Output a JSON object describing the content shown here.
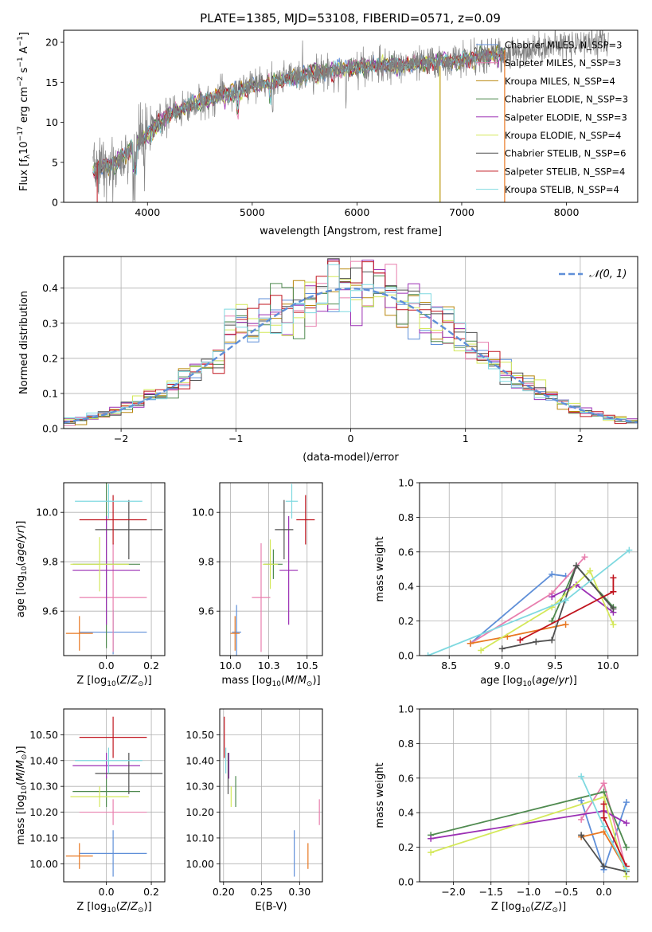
{
  "chart_data": [
    {
      "type": "line",
      "title": "PLATE=1385, MJD=53108, FIBERID=0571, z=0.09",
      "xlabel": "wavelength [Angstrom, rest frame]",
      "ylabel": "Flux [f_λ 10^-17 erg cm^-2 s^-1 A^-1]",
      "xlim": [
        3200,
        8680
      ],
      "ylim": [
        0,
        21.5
      ],
      "xticks": [
        4000,
        5000,
        6000,
        7000,
        8000
      ],
      "yticks": [
        0,
        5,
        10,
        15,
        20
      ],
      "legend_position": "top-right",
      "series": [
        {
          "name": "Chabrier MILES, N_SSP=3",
          "color": "#5f8fd8"
        },
        {
          "name": "Salpeter MILES, N_SSP=3",
          "color": "#e87fae"
        },
        {
          "name": "Kroupa MILES, N_SSP=4",
          "color": "#b8860b"
        },
        {
          "name": "Chabrier ELODIE, N_SSP=3",
          "color": "#4f8a4f"
        },
        {
          "name": "Salpeter ELODIE, N_SSP=3",
          "color": "#9b2fb4"
        },
        {
          "name": "Kroupa ELODIE, N_SSP=4",
          "color": "#d4e85a"
        },
        {
          "name": "Chabrier STELIB, N_SSP=6",
          "color": "#505050"
        },
        {
          "name": "Salpeter STELIB, N_SSP=4",
          "color": "#c0141e"
        },
        {
          "name": "Kroupa STELIB, N_SSP=4",
          "color": "#7fd9e0"
        }
      ],
      "data_color": "#808080",
      "approx_continuum": {
        "x": [
          3500,
          3700,
          3900,
          4000,
          4200,
          4500,
          5000,
          5500,
          6000,
          6500,
          7000,
          7400,
          7800,
          8200
        ],
        "y": [
          4,
          5,
          7.5,
          8.5,
          11,
          12.5,
          14.5,
          16,
          16.8,
          17.2,
          17.8,
          18.5,
          19.5,
          20
        ]
      }
    },
    {
      "type": "histogram",
      "xlabel": "(data-model)/error",
      "ylabel": "Normed distribution",
      "xlim": [
        -2.5,
        2.5
      ],
      "ylim": [
        0,
        0.49
      ],
      "xticks": [
        -2,
        -1,
        0,
        1,
        2
      ],
      "yticks": [
        0.0,
        0.1,
        0.2,
        0.3,
        0.4
      ],
      "legend": [
        "N(0,1)"
      ],
      "reference_curve": "gaussian N(0,1)",
      "bin_width": 0.1,
      "grid": true
    },
    {
      "type": "scatter",
      "panel": "age vs Z",
      "xlabel": "Z [log10(Z/Z_sun)]",
      "ylabel": "age [log10(age/yr)]",
      "xlim": [
        -0.19,
        0.26
      ],
      "ylim": [
        9.42,
        10.12
      ],
      "xticks": [
        0.0,
        0.2
      ],
      "yticks": [
        9.6,
        9.8,
        10.0
      ],
      "points": [
        {
          "x": 0.03,
          "xerr": 0.15,
          "y": 9.515,
          "yerr": 0.09,
          "color": "#5f8fd8"
        },
        {
          "x": 0.03,
          "xerr": 0.15,
          "y": 9.655,
          "yerr": 0.22,
          "color": "#e87fae"
        },
        {
          "x": -0.12,
          "xerr": 0.06,
          "y": 9.51,
          "yerr": 0.07,
          "color": "#e87822"
        },
        {
          "x": 0.0,
          "xerr": 0.15,
          "y": 9.79,
          "yerr": 0.34,
          "color": "#4f8a4f"
        },
        {
          "x": 0.0,
          "xerr": 0.15,
          "y": 9.765,
          "yerr": 0.22,
          "color": "#9b2fb4"
        },
        {
          "x": -0.03,
          "xerr": 0.13,
          "y": 9.79,
          "yerr": 0.11,
          "color": "#d4e85a"
        },
        {
          "x": 0.1,
          "xerr": 0.15,
          "y": 9.93,
          "yerr": 0.12,
          "color": "#505050"
        },
        {
          "x": 0.03,
          "xerr": 0.15,
          "y": 9.97,
          "yerr": 0.1,
          "color": "#c0141e"
        },
        {
          "x": 0.01,
          "xerr": 0.15,
          "y": 10.045,
          "yerr": 0.07,
          "color": "#7fd9e0"
        }
      ]
    },
    {
      "type": "scatter",
      "panel": "age vs mass",
      "xlabel": "mass [log10(M/M_sun)]",
      "ylabel": "",
      "xlim": [
        9.93,
        10.6
      ],
      "ylim": [
        9.42,
        10.12
      ],
      "xticks": [
        10.0,
        10.25,
        10.5
      ],
      "yticks": [
        9.6,
        9.8,
        10.0
      ],
      "points": [
        {
          "x": 10.04,
          "xerr": 0.03,
          "y": 9.515,
          "yerr": 0.11,
          "color": "#5f8fd8"
        },
        {
          "x": 10.2,
          "xerr": 0.06,
          "y": 9.655,
          "yerr": 0.22,
          "color": "#e87fae"
        },
        {
          "x": 10.03,
          "xerr": 0.03,
          "y": 9.51,
          "yerr": 0.07,
          "color": "#e87822"
        },
        {
          "x": 10.28,
          "xerr": 0.06,
          "y": 9.79,
          "yerr": 0.06,
          "color": "#4f8a4f"
        },
        {
          "x": 10.38,
          "xerr": 0.06,
          "y": 9.765,
          "yerr": 0.22,
          "color": "#9b2fb4"
        },
        {
          "x": 10.26,
          "xerr": 0.05,
          "y": 9.79,
          "yerr": 0.1,
          "color": "#d4e85a"
        },
        {
          "x": 10.35,
          "xerr": 0.06,
          "y": 9.93,
          "yerr": 0.12,
          "color": "#505050"
        },
        {
          "x": 10.49,
          "xerr": 0.06,
          "y": 9.97,
          "yerr": 0.1,
          "color": "#c0141e"
        },
        {
          "x": 10.4,
          "xerr": 0.04,
          "y": 10.045,
          "yerr": 0.07,
          "color": "#7fd9e0"
        }
      ]
    },
    {
      "type": "line",
      "panel": "mass weight vs age",
      "xlabel": "age [log10(age/yr)]",
      "ylabel": "mass weight",
      "xlim": [
        8.22,
        10.28
      ],
      "ylim": [
        0.0,
        1.0
      ],
      "xticks": [
        8.5,
        9.0,
        9.5,
        10.0
      ],
      "yticks": [
        0.0,
        0.2,
        0.4,
        0.6,
        0.8,
        1.0
      ],
      "series": [
        {
          "color": "#5f8fd8",
          "x": [
            8.7,
            9.47,
            9.6
          ],
          "y": [
            0.07,
            0.47,
            0.46
          ]
        },
        {
          "color": "#e87fae",
          "x": [
            8.7,
            9.47,
            9.78
          ],
          "y": [
            0.07,
            0.36,
            0.57
          ]
        },
        {
          "color": "#e87822",
          "x": [
            8.7,
            9.05,
            9.6
          ],
          "y": [
            0.07,
            0.11,
            0.18
          ]
        },
        {
          "color": "#4f8a4f",
          "x": [
            9.47,
            9.7,
            10.05
          ],
          "y": [
            0.2,
            0.52,
            0.28
          ]
        },
        {
          "color": "#9b2fb4",
          "x": [
            9.47,
            9.7,
            10.05
          ],
          "y": [
            0.34,
            0.41,
            0.25
          ]
        },
        {
          "color": "#d4e85a",
          "x": [
            8.8,
            9.47,
            9.83,
            10.05
          ],
          "y": [
            0.03,
            0.28,
            0.49,
            0.18
          ]
        },
        {
          "color": "#505050",
          "x": [
            9.0,
            9.32,
            9.47,
            9.7,
            10.05
          ],
          "y": [
            0.04,
            0.08,
            0.09,
            0.52,
            0.27
          ]
        },
        {
          "color": "#c0141e",
          "x": [
            9.17,
            10.05,
            10.05
          ],
          "y": [
            0.09,
            0.37,
            0.45
          ]
        },
        {
          "color": "#7fd9e0",
          "x": [
            8.3,
            9.6,
            10.2
          ],
          "y": [
            0.0,
            0.32,
            0.61
          ]
        }
      ]
    },
    {
      "type": "scatter",
      "panel": "mass vs Z",
      "xlabel": "Z [log10(Z/Z_sun)]",
      "ylabel": "mass [log10(M/M_sun)]",
      "xlim": [
        -0.19,
        0.26
      ],
      "ylim": [
        9.93,
        10.6
      ],
      "xticks": [
        0.0,
        0.2
      ],
      "yticks": [
        10.0,
        10.1,
        10.2,
        10.3,
        10.4,
        10.5
      ],
      "points": [
        {
          "x": 0.03,
          "xerr": 0.15,
          "y": 10.04,
          "yerr": 0.09,
          "color": "#5f8fd8"
        },
        {
          "x": 0.03,
          "xerr": 0.15,
          "y": 10.2,
          "yerr": 0.05,
          "color": "#e87fae"
        },
        {
          "x": -0.12,
          "xerr": 0.06,
          "y": 10.03,
          "yerr": 0.05,
          "color": "#e87822"
        },
        {
          "x": 0.0,
          "xerr": 0.15,
          "y": 10.28,
          "yerr": 0.06,
          "color": "#4f8a4f"
        },
        {
          "x": 0.0,
          "xerr": 0.15,
          "y": 10.38,
          "yerr": 0.05,
          "color": "#9b2fb4"
        },
        {
          "x": -0.03,
          "xerr": 0.13,
          "y": 10.26,
          "yerr": 0.04,
          "color": "#d4e85a"
        },
        {
          "x": 0.1,
          "xerr": 0.15,
          "y": 10.35,
          "yerr": 0.08,
          "color": "#505050"
        },
        {
          "x": 0.03,
          "xerr": 0.15,
          "y": 10.49,
          "yerr": 0.08,
          "color": "#c0141e"
        },
        {
          "x": 0.01,
          "xerr": 0.15,
          "y": 10.4,
          "yerr": 0.05,
          "color": "#7fd9e0"
        }
      ]
    },
    {
      "type": "scatter",
      "panel": "mass vs E(B-V)",
      "xlabel": "E(B-V)",
      "ylabel": "",
      "xlim": [
        0.195,
        0.33
      ],
      "ylim": [
        9.93,
        10.6
      ],
      "xticks": [
        0.2,
        0.25,
        0.3
      ],
      "yticks": [
        10.0,
        10.1,
        10.2,
        10.3,
        10.4,
        10.5
      ],
      "points": [
        {
          "x": 0.293,
          "y": 10.04,
          "yerr": 0.09,
          "color": "#5f8fd8"
        },
        {
          "x": 0.326,
          "y": 10.2,
          "yerr": 0.05,
          "color": "#e87fae"
        },
        {
          "x": 0.311,
          "y": 10.03,
          "yerr": 0.05,
          "color": "#e87822"
        },
        {
          "x": 0.216,
          "y": 10.28,
          "yerr": 0.06,
          "color": "#4f8a4f"
        },
        {
          "x": 0.207,
          "y": 10.38,
          "yerr": 0.05,
          "color": "#9b2fb4"
        },
        {
          "x": 0.21,
          "y": 10.26,
          "yerr": 0.04,
          "color": "#d4e85a"
        },
        {
          "x": 0.206,
          "y": 10.35,
          "yerr": 0.08,
          "color": "#505050"
        },
        {
          "x": 0.201,
          "y": 10.49,
          "yerr": 0.08,
          "color": "#c0141e"
        },
        {
          "x": 0.203,
          "y": 10.4,
          "yerr": 0.05,
          "color": "#7fd9e0"
        }
      ]
    },
    {
      "type": "line",
      "panel": "mass weight vs Z",
      "xlabel": "Z [log10(Z/Z_sun)]",
      "ylabel": "mass weight",
      "xlim": [
        -2.45,
        0.45
      ],
      "ylim": [
        0.0,
        1.0
      ],
      "xticks": [
        -2.0,
        -1.5,
        -1.0,
        -0.5,
        0.0
      ],
      "yticks": [
        0.0,
        0.2,
        0.4,
        0.6,
        0.8,
        1.0
      ],
      "series": [
        {
          "color": "#5f8fd8",
          "x": [
            -0.3,
            0.0,
            0.3
          ],
          "y": [
            0.47,
            0.07,
            0.46
          ]
        },
        {
          "color": "#e87fae",
          "x": [
            -0.3,
            0.0,
            0.3
          ],
          "y": [
            0.36,
            0.57,
            0.07
          ]
        },
        {
          "color": "#e87822",
          "x": [
            -0.3,
            0.0,
            0.3
          ],
          "y": [
            0.26,
            0.29,
            0.07
          ]
        },
        {
          "color": "#4f8a4f",
          "x": [
            -2.3,
            0.0,
            0.3
          ],
          "y": [
            0.27,
            0.52,
            0.2
          ]
        },
        {
          "color": "#9b2fb4",
          "x": [
            -2.3,
            0.0,
            0.3
          ],
          "y": [
            0.25,
            0.41,
            0.34
          ]
        },
        {
          "color": "#d4e85a",
          "x": [
            -2.3,
            0.0,
            0.3
          ],
          "y": [
            0.17,
            0.49,
            0.03
          ]
        },
        {
          "color": "#505050",
          "x": [
            -0.3,
            0.0,
            0.3
          ],
          "y": [
            0.27,
            0.09,
            0.06
          ]
        },
        {
          "color": "#c0141e",
          "x": [
            0.0,
            0.0,
            0.3
          ],
          "y": [
            0.45,
            0.37,
            0.09
          ]
        },
        {
          "color": "#7fd9e0",
          "x": [
            -0.3,
            0.0,
            0.3
          ],
          "y": [
            0.61,
            0.32,
            0.07
          ]
        }
      ]
    }
  ]
}
